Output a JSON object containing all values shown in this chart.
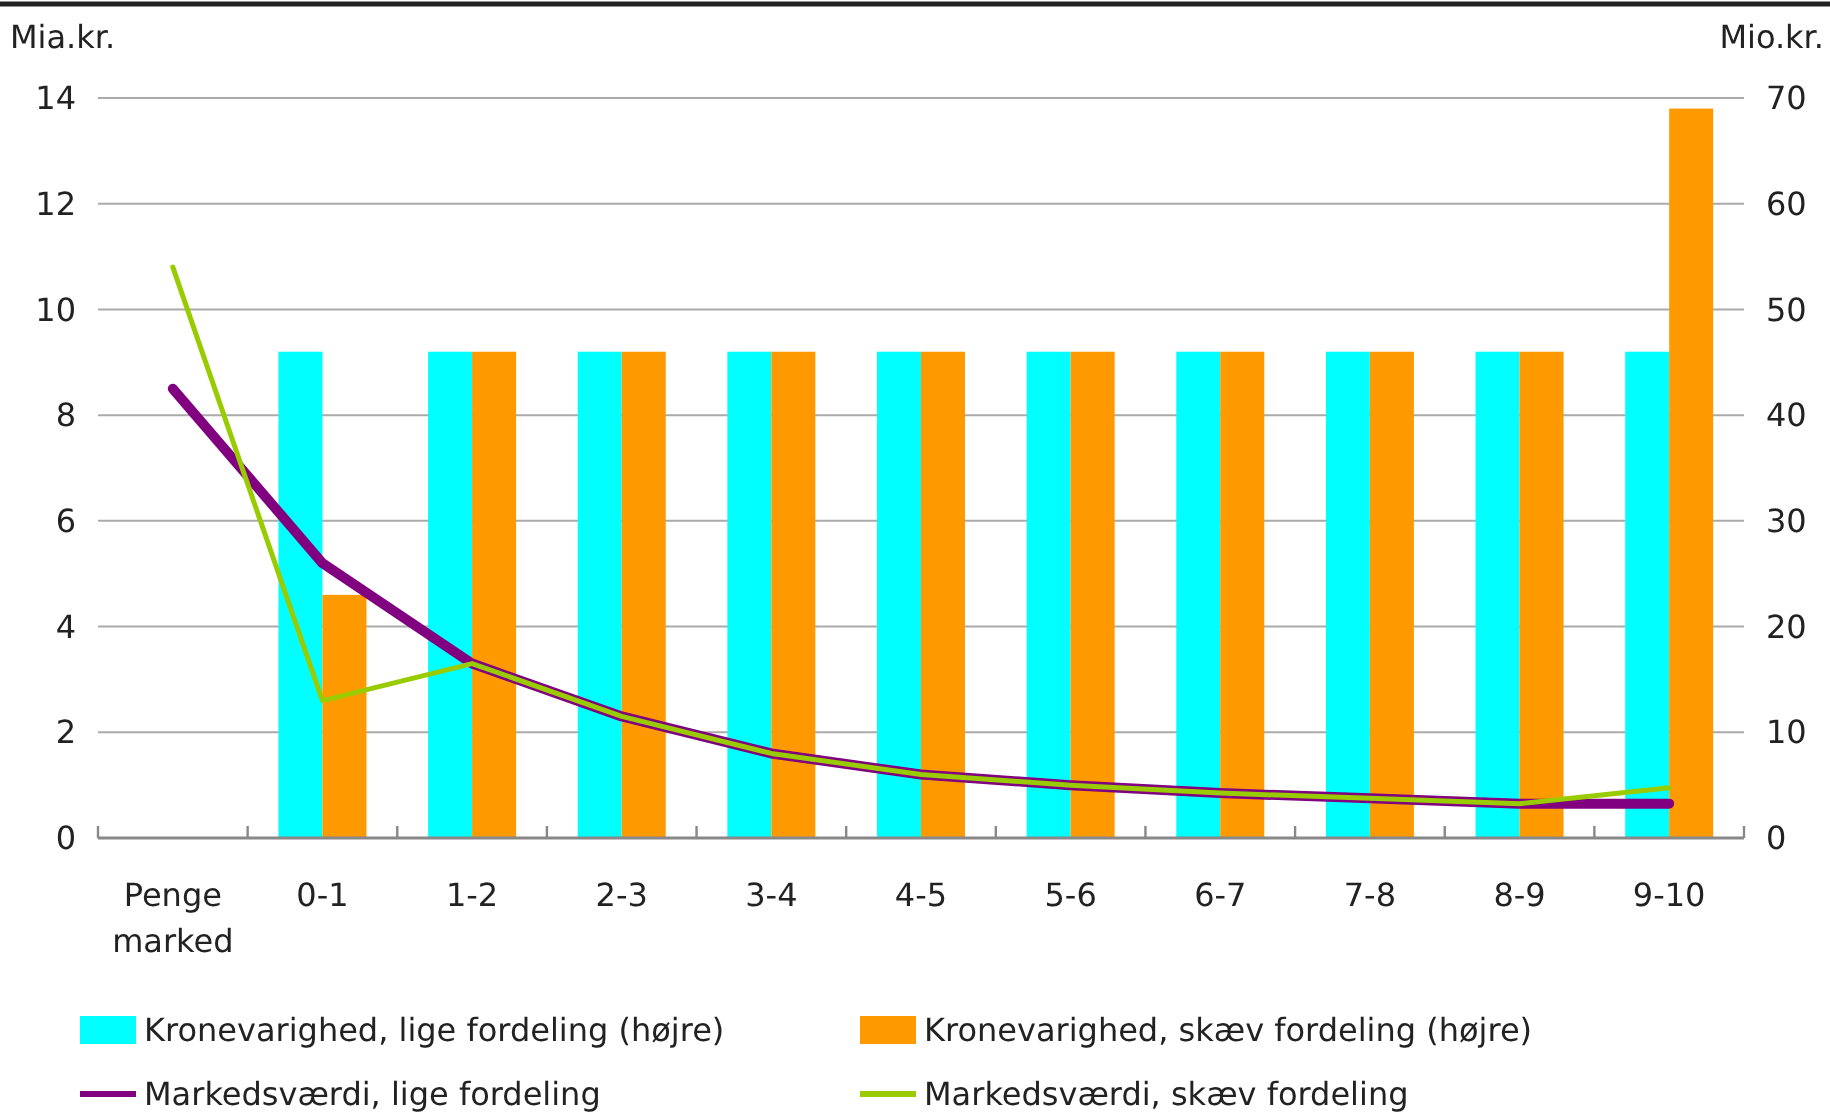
{
  "chart_data": {
    "type": "bar",
    "categories": [
      "Penge marked",
      "0-1",
      "1-2",
      "2-3",
      "3-4",
      "4-5",
      "5-6",
      "6-7",
      "7-8",
      "8-9",
      "9-10"
    ],
    "series": [
      {
        "name": "Kronevarighed, lige fordeling (højre)",
        "axis": "y2",
        "color": "#00ffff",
        "values": [
          null,
          46,
          46,
          46,
          46,
          46,
          46,
          46,
          46,
          46,
          46
        ]
      },
      {
        "name": "Kronevarighed, skæv fordeling (højre)",
        "axis": "y2",
        "color": "#ff9900",
        "values": [
          null,
          23,
          46,
          46,
          46,
          46,
          46,
          46,
          46,
          46,
          69
        ]
      },
      {
        "name": "Markedsværdi, lige fordeling",
        "type": "line",
        "color": "#800080",
        "values": [
          8.5,
          5.2,
          3.3,
          2.3,
          1.6,
          1.2,
          1.0,
          0.85,
          0.75,
          0.65,
          0.65
        ]
      },
      {
        "name": "Markedsværdi, skæv fordeling",
        "type": "line",
        "color": "#99cc00",
        "values": [
          10.8,
          2.6,
          3.3,
          2.3,
          1.6,
          1.2,
          1.0,
          0.85,
          0.75,
          0.65,
          0.95
        ]
      }
    ],
    "ylabel": "Mia.kr.",
    "y2label": "Mio.kr.",
    "ylim": [
      0,
      14
    ],
    "yticks": [
      0,
      2,
      4,
      6,
      8,
      10,
      12,
      14
    ],
    "y2lim": [
      0,
      70
    ],
    "y2ticks": [
      0,
      10,
      20,
      30,
      40,
      50,
      60,
      70
    ],
    "grid": "y",
    "legend": "bottom"
  }
}
